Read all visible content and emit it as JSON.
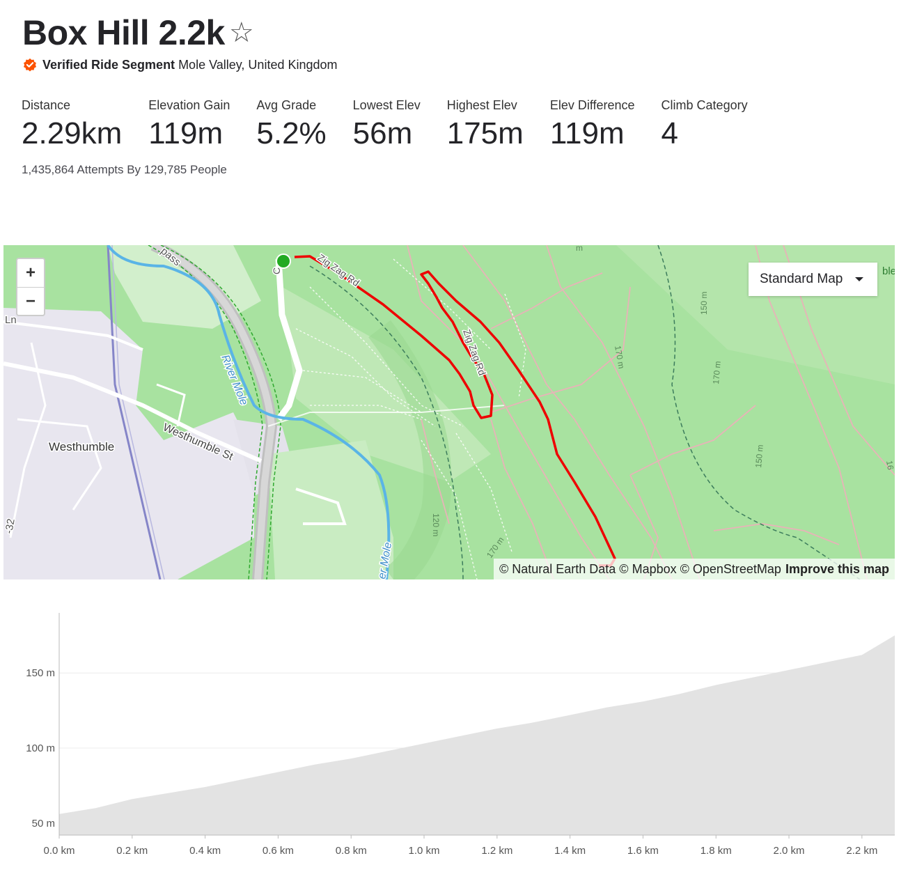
{
  "segment": {
    "title": "Box Hill 2.2k",
    "favorite_icon": "star-outline-icon",
    "verified_label": "Verified Ride Segment",
    "location": "Mole Valley, United Kingdom"
  },
  "stats": [
    {
      "label": "Distance",
      "value": "2.29km"
    },
    {
      "label": "Elevation Gain",
      "value": "119m"
    },
    {
      "label": "Avg Grade",
      "value": "5.2%"
    },
    {
      "label": "Lowest Elev",
      "value": "56m"
    },
    {
      "label": "Highest Elev",
      "value": "175m"
    },
    {
      "label": "Elev Difference",
      "value": "119m"
    },
    {
      "label": "Climb Category",
      "value": "4"
    }
  ],
  "attempts": "1,435,864 Attempts By 129,785 People",
  "map": {
    "zoom_in": "+",
    "zoom_out": "−",
    "style_select": "Standard Map",
    "attribution": "© Natural Earth Data © Mapbox © OpenStreetMap",
    "improve_link": "Improve this map",
    "labels": {
      "westhumble": "Westhumble",
      "westhumble_st": "Westhumble St",
      "river_mole": "River Mole",
      "river_mole_2": "er Mole",
      "zig_zag": "Zig Zag Rd",
      "zig_zag_2": "Zig Zag Rd",
      "pass": "pass",
      "ln": "Ln",
      "a32": "-32",
      "c_l": "C",
      "c150": "150 m",
      "c170a": "170 m",
      "c170b": "170 m",
      "c120": "120 m",
      "c170c": "170 m",
      "c150b": "150 m",
      "c16": "16",
      "cm": "m",
      "able": "ble"
    },
    "colors": {
      "route": "#ee0000",
      "start": "#22aa22",
      "land": "#a8e2a0"
    }
  },
  "chart_data": {
    "type": "area",
    "title": "",
    "xlabel": "",
    "ylabel": "",
    "x_unit": "km",
    "y_unit": "m",
    "x_ticks": [
      "0.0 km",
      "0.2 km",
      "0.4 km",
      "0.6 km",
      "0.8 km",
      "1.0 km",
      "1.2 km",
      "1.4 km",
      "1.6 km",
      "1.8 km",
      "2.0 km",
      "2.2 km"
    ],
    "y_ticks": [
      "50 m",
      "100 m",
      "150 m"
    ],
    "xlim": [
      0,
      2.29
    ],
    "ylim": [
      42,
      190
    ],
    "x": [
      0,
      0.1,
      0.2,
      0.3,
      0.4,
      0.5,
      0.6,
      0.7,
      0.8,
      0.9,
      1.0,
      1.1,
      1.2,
      1.3,
      1.4,
      1.5,
      1.6,
      1.7,
      1.8,
      1.9,
      2.0,
      2.1,
      2.2,
      2.29
    ],
    "y": [
      56,
      60,
      66,
      70,
      74,
      79,
      84,
      89,
      93,
      98,
      103,
      108,
      113,
      117,
      122,
      127,
      131,
      136,
      142,
      147,
      152,
      157,
      162,
      175
    ],
    "grid": true,
    "colors": {
      "fill": "#e3e3e3",
      "grid": "#ececec",
      "axis": "#bbbbbb"
    }
  }
}
